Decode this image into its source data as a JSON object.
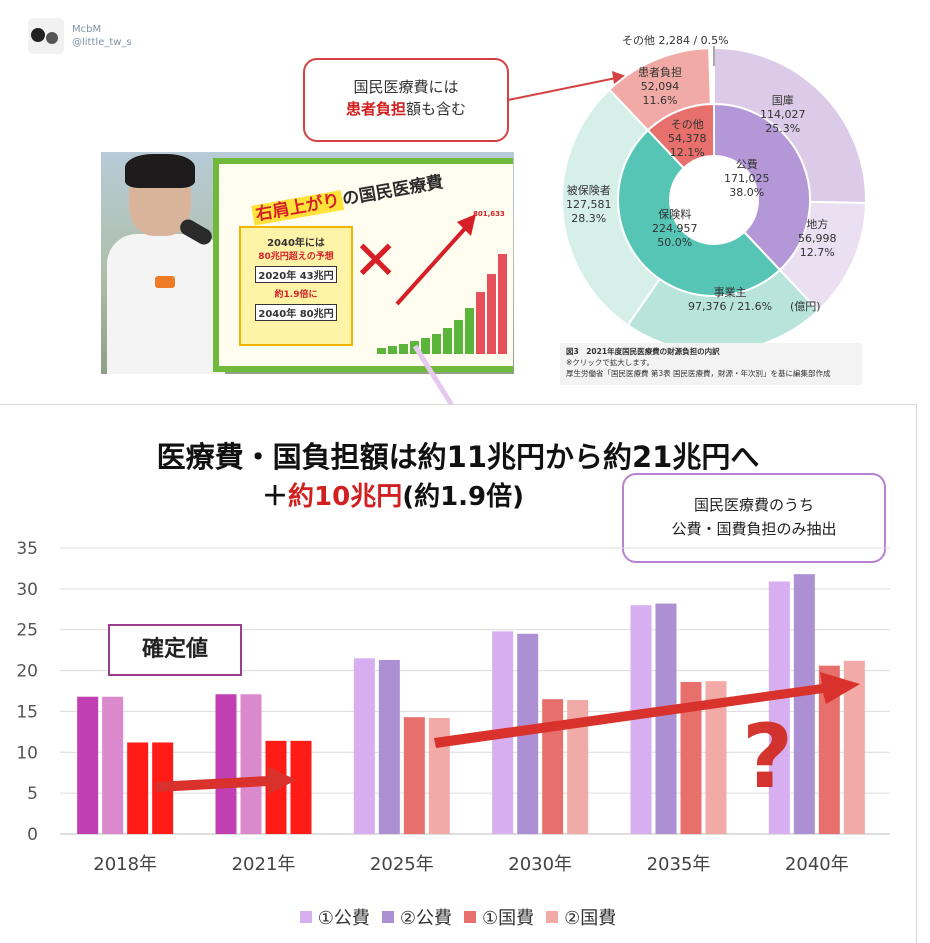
{
  "handle": {
    "name": "McbM",
    "id": "@little_tw_s"
  },
  "photo_board": {
    "title_highlight": "右肩上がり",
    "title_rest": "の国民医療費",
    "line1": "2040年には",
    "line2": "80兆円超えの予想",
    "row2020_label": "2020年",
    "row2020_value": "43兆円",
    "ratio": "約1.9倍に",
    "row2040_label": "2040年",
    "row2040_value": "80兆円",
    "peak_value": "801,633"
  },
  "callout_top": {
    "line1": "国民医療費には",
    "line2_red": "患者負担",
    "line2_rest": "額も含む"
  },
  "donut": {
    "inner": [
      {
        "name": "公費",
        "value": "171,025",
        "pct": "38.0%",
        "color": "#b497d6"
      },
      {
        "name": "保険料",
        "value": "224,957",
        "pct": "50.0%",
        "color": "#56c5b6"
      },
      {
        "name": "その他",
        "value": "54,378",
        "pct": "12.1%",
        "color": "#e8706c"
      }
    ],
    "outer": [
      {
        "name": "国庫",
        "value": "114,027",
        "pct": "25.3%",
        "color": "#dccbe8"
      },
      {
        "name": "地方",
        "value": "56,998",
        "pct": "12.7%",
        "color": "#ebe0f1"
      },
      {
        "name": "事業主",
        "value": "97,376",
        "pct": "21.6%",
        "color": "#b8e4dc"
      },
      {
        "name": "被保険者",
        "value": "127,581",
        "pct": "28.3%",
        "color": "#d7efe9"
      },
      {
        "name": "患者負担",
        "value": "52,094",
        "pct": "11.6%",
        "color": "#f1aaa5"
      },
      {
        "name": "その他",
        "value": "2,284",
        "pct": "0.5%",
        "color": "#ffffff"
      }
    ],
    "other_label": "その他 2,284 / 0.5%",
    "unit": "(億円)",
    "caption_title": "図3　2021年度国民医療費の財源負担の内訳",
    "caption_note": "※クリックで拡大します。",
    "caption_source": "厚生労働省「国民医療費 第3表 国民医療費，財源・年次別」を基に編集部作成"
  },
  "title": {
    "main": "医療費・国負担額は約11兆円から約21兆円へ",
    "sub_prefix": "＋",
    "sub_red": "約10兆円",
    "sub_rest": "(約1.9倍)"
  },
  "callout_chart": {
    "line1": "国民医療費のうち",
    "line2": "公費・国費負担のみ抽出"
  },
  "tag_label": "確定値",
  "question_mark": "?",
  "chart_data": {
    "type": "bar",
    "categories": [
      "2018年",
      "2021年",
      "2025年",
      "2030年",
      "2035年",
      "2040年"
    ],
    "ylim": [
      0,
      35
    ],
    "yticks": [
      0,
      5,
      10,
      15,
      20,
      25,
      30,
      35
    ],
    "series": [
      {
        "name": "①公費",
        "legend_color": "#d7aef0",
        "values": [
          16.8,
          17.1,
          21.5,
          24.8,
          28.0,
          30.9
        ]
      },
      {
        "name": "②公費",
        "legend_color": "#ad8fd4",
        "values": [
          16.8,
          17.1,
          21.3,
          24.5,
          28.2,
          31.8
        ]
      },
      {
        "name": "①国費",
        "legend_color": "#e8706c",
        "values": [
          11.2,
          11.4,
          14.3,
          16.5,
          18.6,
          20.6
        ]
      },
      {
        "name": "②国費",
        "legend_color": "#f1aaa5",
        "values": [
          11.2,
          11.4,
          14.2,
          16.4,
          18.7,
          21.2
        ]
      }
    ],
    "confirmed_colors": [
      "#c13fb2",
      "#da89cd",
      "#ff1b16",
      "#ff1b16"
    ],
    "grid": true,
    "legend": "bottom"
  }
}
